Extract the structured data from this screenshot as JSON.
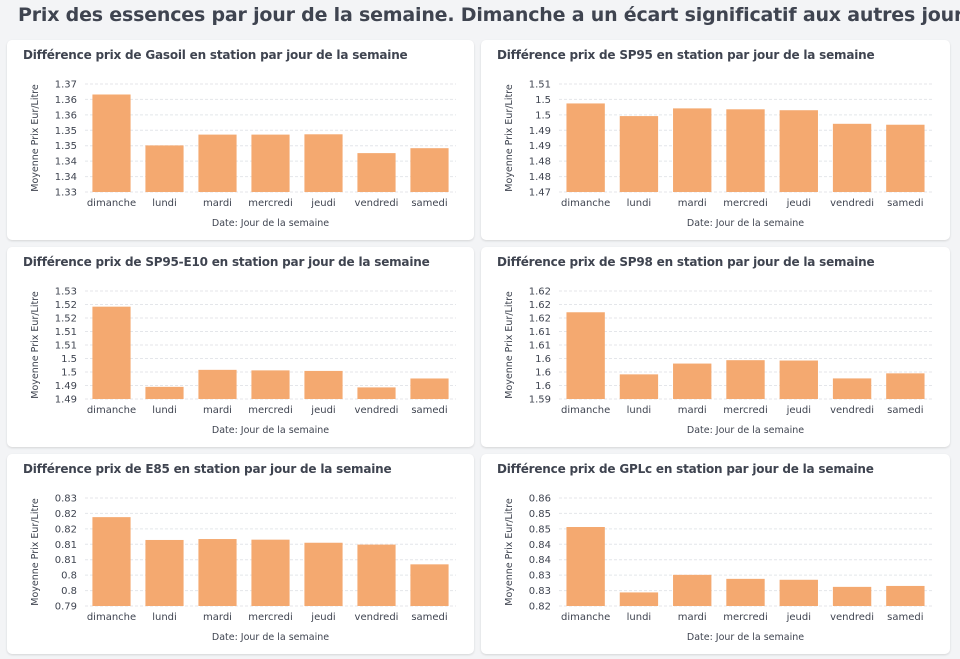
{
  "header": {
    "title": "Prix des essences par jour de la semaine. Dimanche a un écart significatif aux autres jours"
  },
  "colors": {
    "bar": "#f4a970",
    "grid": "#e4e6ea",
    "text": "#3f4450"
  },
  "chart_data": [
    {
      "type": "bar",
      "title": "Différence prix de Gasoil en station par jour de la semaine",
      "xlabel": "Date: Jour de la semaine",
      "ylabel": "Moyenne Prix Eur/Litre",
      "categories": [
        "dimanche",
        "lundi",
        "mardi",
        "mercredi",
        "jeudi",
        "vendredi",
        "samedi"
      ],
      "values": [
        1.3616,
        1.3451,
        1.3486,
        1.3486,
        1.3487,
        1.3426,
        1.3442
      ],
      "ylim": [
        1.33,
        1.365
      ],
      "yticks": [
        1.33,
        1.335,
        1.34,
        1.345,
        1.35,
        1.355,
        1.36,
        1.365
      ],
      "yticklabels": [
        "1.33",
        "1.34",
        "1.34",
        "1.35",
        "1.35",
        "1.36",
        "1.36",
        "1.37"
      ],
      "grid": true,
      "legend": "none"
    },
    {
      "type": "bar",
      "title": "Différence prix de SP95 en station par jour de la semaine",
      "xlabel": "Date: Jour de la semaine",
      "ylabel": "Moyenne Prix Eur/Litre",
      "categories": [
        "dimanche",
        "lundi",
        "mardi",
        "mercredi",
        "jeudi",
        "vendredi",
        "samedi"
      ],
      "values": [
        1.4987,
        1.4946,
        1.4971,
        1.4968,
        1.4965,
        1.4921,
        1.4918
      ],
      "ylim": [
        1.47,
        1.505
      ],
      "yticks": [
        1.47,
        1.475,
        1.48,
        1.485,
        1.49,
        1.495,
        1.5,
        1.505
      ],
      "yticklabels": [
        "1.47",
        "1.48",
        "1.48",
        "1.49",
        "1.49",
        "1.5",
        "1.5",
        "1.51"
      ],
      "grid": true,
      "legend": "none"
    },
    {
      "type": "bar",
      "title": "Différence prix de SP95-E10 en station par jour de la semaine",
      "xlabel": "Date: Jour de la semaine",
      "ylabel": "Moyenne Prix Eur/Litre",
      "categories": [
        "dimanche",
        "lundi",
        "mardi",
        "mercredi",
        "jeudi",
        "vendredi",
        "samedi"
      ],
      "values": [
        1.5192,
        1.4895,
        1.4958,
        1.4956,
        1.4954,
        1.4893,
        1.4926
      ],
      "ylim": [
        1.485,
        1.525
      ],
      "yticks": [
        1.485,
        1.49,
        1.495,
        1.5,
        1.505,
        1.51,
        1.515,
        1.52,
        1.525
      ],
      "yticklabels": [
        "1.49",
        "1.49",
        "1.5",
        "1.5",
        "1.51",
        "1.51",
        "1.52",
        "1.52",
        "1.53"
      ],
      "grid": true,
      "legend": "none"
    },
    {
      "type": "bar",
      "title": "Différence prix de SP98 en station par jour de la semaine",
      "xlabel": "Date: Jour de la semaine",
      "ylabel": "Moyenne Prix Eur/Litre",
      "categories": [
        "dimanche",
        "lundi",
        "mardi",
        "mercredi",
        "jeudi",
        "vendredi",
        "samedi"
      ],
      "values": [
        1.6177,
        1.5993,
        1.6025,
        1.6035,
        1.6034,
        1.5981,
        1.5996
      ],
      "ylim": [
        1.592,
        1.624
      ],
      "yticks": [
        1.592,
        1.596,
        1.6,
        1.604,
        1.608,
        1.612,
        1.616,
        1.62,
        1.624
      ],
      "yticklabels": [
        "1.59",
        "1.6",
        "1.6",
        "1.6",
        "1.61",
        "1.61",
        "1.62",
        "1.62",
        "1.62"
      ],
      "grid": true,
      "legend": "none"
    },
    {
      "type": "bar",
      "title": "Différence prix de E85 en station par jour de la semaine",
      "xlabel": "Date: Jour de la semaine",
      "ylabel": "Moyenne Prix Eur/Litre",
      "categories": [
        "dimanche",
        "lundi",
        "mardi",
        "mercredi",
        "jeudi",
        "vendredi",
        "samedi"
      ],
      "values": [
        0.8188,
        0.8114,
        0.8117,
        0.8115,
        0.8105,
        0.8099,
        0.8035
      ],
      "ylim": [
        0.79,
        0.825
      ],
      "yticks": [
        0.79,
        0.795,
        0.8,
        0.805,
        0.81,
        0.815,
        0.82,
        0.825
      ],
      "yticklabels": [
        "0.79",
        "0.8",
        "0.8",
        "0.81",
        "0.81",
        "0.82",
        "0.82",
        "0.83"
      ],
      "grid": true,
      "legend": "none"
    },
    {
      "type": "bar",
      "title": "Différence prix de GPLc en station par jour de la semaine",
      "xlabel": "Date: Jour de la semaine",
      "ylabel": "Moyenne Prix Eur/Litre",
      "categories": [
        "dimanche",
        "lundi",
        "mardi",
        "mercredi",
        "jeudi",
        "vendredi",
        "samedi"
      ],
      "values": [
        0.8456,
        0.8244,
        0.8301,
        0.8288,
        0.8285,
        0.8262,
        0.8265
      ],
      "ylim": [
        0.82,
        0.855
      ],
      "yticks": [
        0.82,
        0.825,
        0.83,
        0.835,
        0.84,
        0.845,
        0.85,
        0.855
      ],
      "yticklabels": [
        "0.82",
        "0.83",
        "0.83",
        "0.84",
        "0.84",
        "0.85",
        "0.85",
        "0.86"
      ],
      "grid": true,
      "legend": "none"
    }
  ]
}
